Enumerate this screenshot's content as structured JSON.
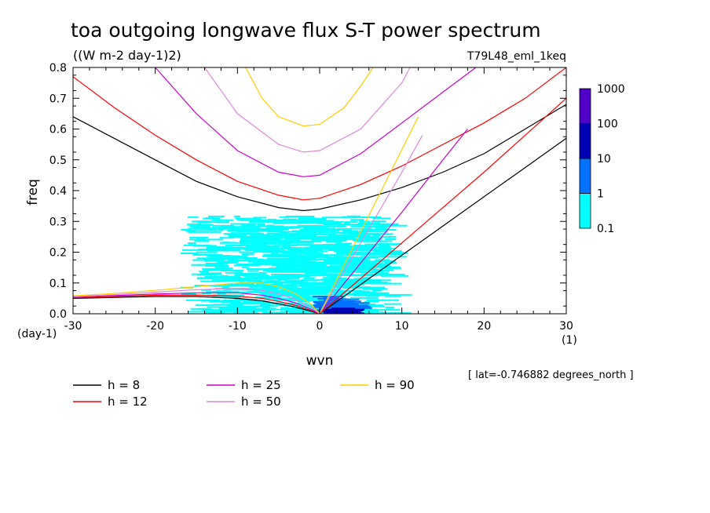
{
  "chart_data": {
    "type": "heatmap",
    "title": "toa outgoing longwave flux S-T power spectrum",
    "subtitle": "((W m-2 day-1)2)",
    "experiment_label": "T79L48_eml_1keq",
    "xlabel": "wvn",
    "ylabel": "freq",
    "x_unit_label": "(1)",
    "y_unit_label": "(day-1)",
    "footer_note": "[ lat=-0.746882 degrees_north ]",
    "xlim": [
      -30,
      30
    ],
    "ylim": [
      0,
      0.8
    ],
    "x_ticks": [
      -30,
      -20,
      -10,
      0,
      10,
      20,
      30
    ],
    "x_tick_labels": [
      "-30",
      "-20",
      "-10",
      "0",
      "10",
      "20",
      "30"
    ],
    "y_ticks": [
      0,
      0.1,
      0.2,
      0.3,
      0.4,
      0.5,
      0.6,
      0.7,
      0.8
    ],
    "y_tick_labels": [
      "0.0",
      "0.1",
      "0.2",
      "0.3",
      "0.4",
      "0.5",
      "0.6",
      "0.7",
      "0.8"
    ],
    "grid": false,
    "colorbar": {
      "position": "right",
      "levels": [
        "0.1",
        "1",
        "10",
        "100",
        "1000"
      ],
      "colors": [
        "#00ffff",
        "#0072ff",
        "#0000b4",
        "#5000c8"
      ]
    },
    "power_regions": [
      {
        "level": "0.1-1",
        "x_range": [
          -17,
          8
        ],
        "y_range": [
          0,
          0.32
        ],
        "peak": [
          -3,
          0.15
        ]
      },
      {
        "level": "1-10",
        "x_range": [
          -1,
          3
        ],
        "y_range": [
          0,
          0.06
        ],
        "peak": [
          1,
          0.02
        ]
      },
      {
        "level": "10-100",
        "x_range": [
          0,
          2
        ],
        "y_range": [
          0,
          0.02
        ],
        "peak": [
          1,
          0.01
        ]
      }
    ],
    "dispersion_curves": [
      {
        "name": "h =  8",
        "color": "#000000",
        "branches": {
          "inertia_gravity_n1": {
            "x": [
              -30,
              -25,
              -20,
              -15,
              -10,
              -5,
              -2,
              0,
              5,
              10,
              15,
              20,
              25,
              30
            ],
            "y": [
              0.64,
              0.57,
              0.5,
              0.43,
              0.38,
              0.345,
              0.335,
              0.34,
              0.37,
              0.41,
              0.46,
              0.52,
              0.6,
              0.68
            ]
          },
          "kelvin": {
            "x": [
              0,
              5,
              10,
              15,
              20,
              25,
              30
            ],
            "y": [
              0,
              0.095,
              0.19,
              0.285,
              0.38,
              0.475,
              0.57
            ]
          },
          "rossby": {
            "x": [
              -30,
              -25,
              -20,
              -15,
              -10,
              -7,
              -5,
              -3,
              -1,
              0
            ],
            "y": [
              0.05,
              0.053,
              0.056,
              0.056,
              0.05,
              0.042,
              0.032,
              0.022,
              0.008,
              0
            ]
          }
        }
      },
      {
        "name": "h = 12",
        "color": "#ff0000",
        "branches": {
          "inertia_gravity_n1": {
            "x": [
              -30,
              -25,
              -20,
              -15,
              -10,
              -5,
              -2,
              0,
              5,
              10,
              15,
              20,
              25,
              30
            ],
            "y": [
              0.77,
              0.67,
              0.58,
              0.5,
              0.43,
              0.385,
              0.37,
              0.375,
              0.42,
              0.48,
              0.55,
              0.62,
              0.7,
              0.8
            ]
          },
          "kelvin": {
            "x": [
              0,
              5,
              10,
              15,
              20,
              25,
              30
            ],
            "y": [
              0,
              0.115,
              0.23,
              0.345,
              0.46,
              0.58,
              0.7
            ]
          },
          "rossby": {
            "x": [
              -30,
              -25,
              -20,
              -15,
              -10,
              -7,
              -5,
              -3,
              -1,
              0
            ],
            "y": [
              0.052,
              0.056,
              0.06,
              0.061,
              0.057,
              0.05,
              0.04,
              0.028,
              0.01,
              0
            ]
          }
        }
      },
      {
        "name": "h = 25",
        "color": "#cc00cc",
        "branches": {
          "inertia_gravity_n1": {
            "x": [
              -20,
              -15,
              -10,
              -5,
              -2,
              0,
              5,
              10,
              15,
              19
            ],
            "y": [
              0.8,
              0.65,
              0.53,
              0.46,
              0.445,
              0.45,
              0.52,
              0.62,
              0.72,
              0.8
            ]
          },
          "kelvin": {
            "x": [
              0,
              5,
              10,
              15,
              18
            ],
            "y": [
              0,
              0.165,
              0.33,
              0.5,
              0.6
            ]
          },
          "rossby": {
            "x": [
              -30,
              -25,
              -20,
              -15,
              -10,
              -7,
              -5,
              -3,
              -1,
              0
            ],
            "y": [
              0.055,
              0.059,
              0.064,
              0.068,
              0.068,
              0.06,
              0.05,
              0.036,
              0.014,
              0
            ]
          }
        }
      },
      {
        "name": "h = 50",
        "color": "#dd88dd",
        "branches": {
          "inertia_gravity_n1": {
            "x": [
              -14,
              -10,
              -5,
              -2,
              0,
              5,
              10,
              11
            ],
            "y": [
              0.8,
              0.65,
              0.55,
              0.525,
              0.53,
              0.6,
              0.75,
              0.8
            ]
          },
          "kelvin": {
            "x": [
              0,
              5,
              10,
              12.5
            ],
            "y": [
              0,
              0.23,
              0.46,
              0.58
            ]
          },
          "rossby": {
            "x": [
              -30,
              -25,
              -20,
              -15,
              -10,
              -7,
              -5,
              -3,
              -1,
              0
            ],
            "y": [
              0.056,
              0.062,
              0.07,
              0.078,
              0.082,
              0.076,
              0.065,
              0.048,
              0.02,
              0
            ]
          }
        }
      },
      {
        "name": "h = 90",
        "color": "#ffcc00",
        "branches": {
          "inertia_gravity_n1": {
            "x": [
              -9,
              -7,
              -5,
              -2,
              0,
              3,
              5,
              6.5
            ],
            "y": [
              0.8,
              0.7,
              0.64,
              0.61,
              0.615,
              0.67,
              0.74,
              0.8
            ]
          },
          "kelvin": {
            "x": [
              0,
              3,
              6,
              9,
              12
            ],
            "y": [
              0,
              0.16,
              0.32,
              0.48,
              0.64
            ]
          },
          "rossby": {
            "x": [
              -30,
              -25,
              -20,
              -15,
              -10,
              -7,
              -5,
              -3,
              -1,
              0
            ],
            "y": [
              0.058,
              0.066,
              0.076,
              0.088,
              0.1,
              0.1,
              0.088,
              0.066,
              0.03,
              0
            ]
          }
        }
      }
    ]
  }
}
